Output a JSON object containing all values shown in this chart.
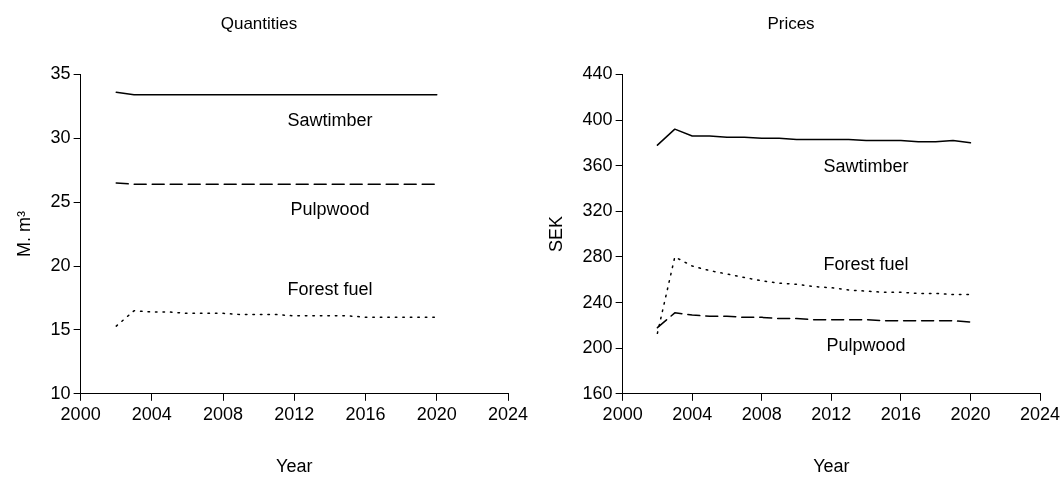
{
  "chart_data": [
    {
      "type": "line",
      "title": "Quantities",
      "xlabel": "Year",
      "ylabel": "M. m³",
      "xlim": [
        2000,
        2024
      ],
      "xticks": [
        2000,
        2004,
        2008,
        2012,
        2016,
        2020,
        2024
      ],
      "ylim": [
        10,
        35
      ],
      "yticks": [
        10,
        15,
        20,
        25,
        30,
        35
      ],
      "grid": false,
      "legend": false,
      "marker": "none",
      "x": [
        2002,
        2003,
        2004,
        2005,
        2006,
        2007,
        2008,
        2009,
        2010,
        2011,
        2012,
        2013,
        2014,
        2015,
        2016,
        2017,
        2018,
        2019,
        2020
      ],
      "series": [
        {
          "name": "Sawtimber",
          "color": "#000000",
          "line_style": "solid",
          "values": [
            33.6,
            33.4,
            33.4,
            33.4,
            33.4,
            33.4,
            33.4,
            33.4,
            33.4,
            33.4,
            33.4,
            33.4,
            33.4,
            33.4,
            33.4,
            33.4,
            33.4,
            33.4,
            33.4
          ]
        },
        {
          "name": "Pulpwood",
          "color": "#000000",
          "line_style": "dashed",
          "values": [
            26.5,
            26.4,
            26.4,
            26.4,
            26.4,
            26.4,
            26.4,
            26.4,
            26.4,
            26.4,
            26.4,
            26.4,
            26.4,
            26.4,
            26.4,
            26.4,
            26.4,
            26.4,
            26.4
          ]
        },
        {
          "name": "Forest fuel",
          "color": "#000000",
          "line_style": "dotted",
          "values": [
            15.3,
            16.5,
            16.4,
            16.4,
            16.3,
            16.3,
            16.3,
            16.2,
            16.2,
            16.2,
            16.1,
            16.1,
            16.1,
            16.1,
            16.0,
            16.0,
            16.0,
            16.0,
            16.0
          ]
        }
      ]
    },
    {
      "type": "line",
      "title": "Prices",
      "xlabel": "Year",
      "ylabel": "SEK",
      "xlim": [
        2000,
        2024
      ],
      "xticks": [
        2000,
        2004,
        2008,
        2012,
        2016,
        2020,
        2024
      ],
      "ylim": [
        160,
        440
      ],
      "yticks": [
        160,
        200,
        240,
        280,
        320,
        360,
        400,
        440
      ],
      "grid": false,
      "legend": false,
      "marker": "none",
      "x": [
        2002,
        2003,
        2004,
        2005,
        2006,
        2007,
        2008,
        2009,
        2010,
        2011,
        2012,
        2013,
        2014,
        2015,
        2016,
        2017,
        2018,
        2019,
        2020
      ],
      "series": [
        {
          "name": "Sawtimber",
          "color": "#000000",
          "line_style": "solid",
          "values": [
            378,
            392,
            386,
            386,
            385,
            385,
            384,
            384,
            383,
            383,
            383,
            383,
            382,
            382,
            382,
            381,
            381,
            382,
            380
          ]
        },
        {
          "name": "Pulpwood",
          "color": "#000000",
          "line_style": "dashed",
          "values": [
            218,
            231,
            229,
            228,
            228,
            227,
            227,
            226,
            226,
            225,
            225,
            225,
            225,
            224,
            224,
            224,
            224,
            224,
            223
          ]
        },
        {
          "name": "Forest fuel",
          "color": "#000000",
          "line_style": "dotted",
          "values": [
            213,
            280,
            272,
            268,
            265,
            262,
            259,
            257,
            256,
            254,
            253,
            251,
            250,
            249,
            249,
            248,
            248,
            247,
            247
          ]
        }
      ]
    }
  ]
}
